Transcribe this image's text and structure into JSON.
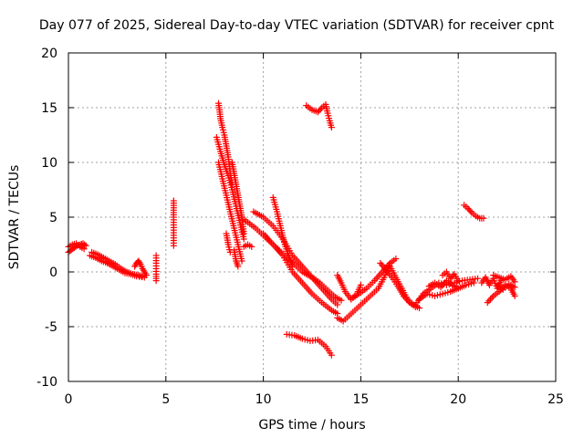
{
  "chart_data": {
    "type": "scatter",
    "title": "Day 077 of 2025, Sidereal Day-to-day VTEC variation (SDTVAR) for receiver cpnt",
    "xlabel": "GPS time / hours",
    "ylabel": "SDTVAR / TECUs",
    "xlim": [
      0,
      25
    ],
    "ylim": [
      -10,
      20
    ],
    "xticks": [
      0,
      5,
      10,
      15,
      20,
      25
    ],
    "yticks": [
      -10,
      -5,
      0,
      5,
      10,
      15,
      20
    ],
    "grid": true,
    "marker": "plus",
    "marker_color": "#ff0000",
    "series": [
      {
        "name": "t0",
        "x": [
          0.0,
          0.15,
          0.3,
          0.45,
          0.6,
          0.75,
          0.9
        ],
        "y": [
          1.8,
          2.0,
          2.2,
          2.4,
          2.5,
          2.6,
          2.4
        ]
      },
      {
        "name": "t1",
        "x": [
          0.0,
          0.2,
          0.4,
          0.6,
          0.8
        ],
        "y": [
          2.3,
          2.5,
          2.6,
          2.3,
          2.1
        ]
      },
      {
        "name": "t2",
        "x": [
          1.2,
          1.5,
          1.8,
          2.1,
          2.4,
          2.7,
          3.0,
          3.3,
          3.6,
          3.8
        ],
        "y": [
          1.8,
          1.6,
          1.3,
          1.0,
          0.7,
          0.3,
          0.0,
          -0.2,
          -0.3,
          -0.4
        ]
      },
      {
        "name": "t3",
        "x": [
          1.1,
          1.4,
          1.7,
          2.0,
          2.3,
          2.6,
          2.9,
          3.2,
          3.5,
          3.9
        ],
        "y": [
          1.5,
          1.3,
          1.0,
          0.8,
          0.5,
          0.2,
          -0.1,
          -0.2,
          -0.4,
          -0.5
        ]
      },
      {
        "name": "t4",
        "x": [
          3.4,
          3.5,
          3.6,
          3.7,
          3.8,
          3.9,
          4.0
        ],
        "y": [
          0.5,
          0.8,
          1.0,
          0.7,
          0.3,
          0.0,
          -0.3
        ]
      },
      {
        "name": "t5",
        "x": [
          4.5,
          4.5,
          4.5,
          4.5,
          4.5
        ],
        "y": [
          1.5,
          0.8,
          0.3,
          -0.2,
          -0.8
        ]
      },
      {
        "name": "t6",
        "x": [
          5.4,
          5.4,
          5.4
        ],
        "y": [
          6.5,
          5.0,
          2.4
        ]
      },
      {
        "name": "t7",
        "x": [
          7.7,
          7.75,
          7.8,
          7.9,
          8.0,
          8.1,
          8.2,
          8.3,
          8.4
        ],
        "y": [
          15.4,
          14.8,
          14.0,
          13.2,
          12.5,
          11.5,
          10.5,
          9.0,
          8.0
        ]
      },
      {
        "name": "t8",
        "x": [
          7.6,
          7.8,
          8.0,
          8.2,
          8.4,
          8.6,
          8.8,
          9.0
        ],
        "y": [
          12.3,
          11.0,
          9.8,
          8.8,
          7.5,
          6.0,
          4.5,
          3.0
        ]
      },
      {
        "name": "t9",
        "x": [
          7.7,
          7.9,
          8.1,
          8.3,
          8.5,
          8.7,
          8.9
        ],
        "y": [
          10.0,
          8.5,
          7.0,
          5.5,
          4.0,
          2.5,
          1.0
        ]
      },
      {
        "name": "t10",
        "x": [
          8.4,
          8.5,
          8.6,
          8.7,
          8.8,
          8.9,
          9.0
        ],
        "y": [
          10.0,
          9.0,
          8.0,
          7.0,
          6.0,
          5.0,
          3.5
        ]
      },
      {
        "name": "t11",
        "x": [
          8.1,
          8.2,
          8.3
        ],
        "y": [
          3.5,
          2.5,
          1.8
        ]
      },
      {
        "name": "t12",
        "x": [
          8.5,
          8.6,
          8.7
        ],
        "y": [
          2.0,
          1.0,
          0.5
        ]
      },
      {
        "name": "t13",
        "x": [
          9.0,
          9.2,
          9.4
        ],
        "y": [
          2.3,
          2.5,
          2.3
        ]
      },
      {
        "name": "t14",
        "x": [
          9.0,
          9.3,
          9.6,
          9.9,
          10.2,
          10.5,
          10.8,
          11.1,
          11.4,
          11.7,
          12.0,
          12.3,
          12.6,
          12.9,
          13.2,
          13.5,
          13.7,
          14.0
        ],
        "y": [
          4.8,
          4.4,
          4.0,
          3.5,
          3.0,
          2.5,
          2.0,
          1.5,
          1.0,
          0.5,
          0.0,
          -0.3,
          -0.6,
          -1.0,
          -1.5,
          -2.0,
          -2.3,
          -2.6
        ]
      },
      {
        "name": "t15",
        "x": [
          9.5,
          10.0,
          10.5,
          11.0,
          11.5,
          12.0,
          12.5,
          13.0,
          13.5,
          13.8
        ],
        "y": [
          5.5,
          5.0,
          4.2,
          3.0,
          1.5,
          0.5,
          -0.5,
          -1.5,
          -2.5,
          -3.0
        ]
      },
      {
        "name": "t16",
        "x": [
          10.0,
          10.5,
          11.0,
          11.5,
          12.0,
          12.5,
          13.0,
          13.5,
          13.8
        ],
        "y": [
          3.5,
          2.5,
          1.5,
          0.0,
          -1.0,
          -2.0,
          -2.8,
          -3.5,
          -3.8
        ]
      },
      {
        "name": "t17",
        "x": [
          10.5,
          10.7,
          10.9,
          11.1,
          11.3,
          11.5
        ],
        "y": [
          6.8,
          5.5,
          4.0,
          2.5,
          1.5,
          0.5
        ]
      },
      {
        "name": "t18",
        "x": [
          11.2,
          11.6,
          12.0,
          12.4,
          12.8,
          13.2,
          13.5
        ],
        "y": [
          -5.7,
          -5.8,
          -6.1,
          -6.3,
          -6.2,
          -6.8,
          -7.6
        ]
      },
      {
        "name": "t19",
        "x": [
          12.2,
          12.5,
          12.8,
          13.0,
          13.2,
          13.3,
          13.4,
          13.5
        ],
        "y": [
          15.2,
          14.8,
          14.6,
          15.0,
          15.3,
          14.5,
          13.8,
          13.2
        ]
      },
      {
        "name": "t20",
        "x": [
          13.8,
          14.0,
          14.2,
          14.5,
          14.8,
          15.0
        ],
        "y": [
          -0.3,
          -1.0,
          -1.8,
          -2.5,
          -2.0,
          -1.2
        ]
      },
      {
        "name": "t21",
        "x": [
          13.8,
          14.1,
          14.4,
          14.7,
          15.0,
          15.3,
          15.6,
          15.9,
          16.2,
          16.5
        ],
        "y": [
          -4.2,
          -4.5,
          -4.0,
          -3.5,
          -3.0,
          -2.5,
          -2.0,
          -1.5,
          -0.5,
          0.8
        ]
      },
      {
        "name": "t22",
        "x": [
          14.5,
          14.9,
          15.3,
          15.7,
          16.1,
          16.5,
          16.8
        ],
        "y": [
          -2.5,
          -2.0,
          -1.5,
          -0.8,
          0.0,
          0.8,
          1.2
        ]
      },
      {
        "name": "t23",
        "x": [
          16.0,
          16.3,
          16.6,
          16.9,
          17.2,
          17.5,
          17.8
        ],
        "y": [
          0.8,
          0.2,
          -0.5,
          -1.3,
          -2.2,
          -2.8,
          -3.2
        ]
      },
      {
        "name": "t24",
        "x": [
          16.5,
          16.8,
          17.1,
          17.4,
          17.7,
          18.0
        ],
        "y": [
          0.5,
          -0.5,
          -1.5,
          -2.5,
          -3.0,
          -3.3
        ]
      },
      {
        "name": "t25",
        "x": [
          17.8,
          18.2,
          18.6,
          19.0,
          19.4,
          19.8,
          20.2,
          20.6,
          21.0
        ],
        "y": [
          -3.0,
          -2.0,
          -1.5,
          -1.0,
          -1.2,
          -1.0,
          -0.8,
          -0.7,
          -0.6
        ]
      },
      {
        "name": "t26",
        "x": [
          18.0,
          18.4,
          18.8,
          19.2,
          19.6,
          20.0,
          20.4,
          20.8
        ],
        "y": [
          -2.5,
          -2.0,
          -2.2,
          -2.0,
          -1.8,
          -1.5,
          -1.2,
          -1.0
        ]
      },
      {
        "name": "t27",
        "x": [
          18.5,
          18.8,
          19.1,
          19.4,
          19.7,
          20.0
        ],
        "y": [
          -1.3,
          -1.0,
          -1.4,
          -0.8,
          -1.2,
          -1.5
        ]
      },
      {
        "name": "t28",
        "x": [
          19.2,
          19.4,
          19.6,
          19.8,
          20.0
        ],
        "y": [
          -0.3,
          0.0,
          -0.6,
          -0.2,
          -0.8
        ]
      },
      {
        "name": "t29",
        "x": [
          20.3,
          20.5,
          20.7,
          20.9,
          21.1,
          21.3
        ],
        "y": [
          6.1,
          5.8,
          5.4,
          5.1,
          4.9,
          4.9
        ]
      },
      {
        "name": "t30",
        "x": [
          21.2,
          21.4,
          21.6,
          21.8,
          22.0,
          22.2
        ],
        "y": [
          -1.0,
          -0.5,
          -1.2,
          -0.6,
          -1.5,
          -0.8
        ]
      },
      {
        "name": "t31",
        "x": [
          21.5,
          21.8,
          22.1,
          22.4,
          22.7,
          22.9
        ],
        "y": [
          -2.8,
          -2.2,
          -1.8,
          -1.2,
          -1.5,
          -2.2
        ]
      },
      {
        "name": "t32",
        "x": [
          21.8,
          22.1,
          22.4,
          22.7,
          22.9
        ],
        "y": [
          -0.3,
          -0.5,
          -0.7,
          -0.4,
          -0.9
        ]
      },
      {
        "name": "t33",
        "x": [
          22.0,
          22.3,
          22.6,
          22.9
        ],
        "y": [
          -1.3,
          -1.6,
          -1.1,
          -1.4
        ]
      }
    ]
  }
}
